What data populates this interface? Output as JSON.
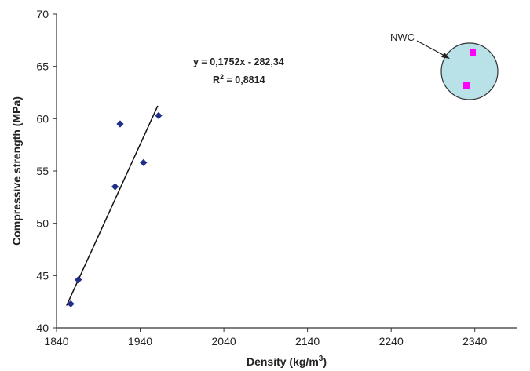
{
  "chart_data": {
    "type": "scatter",
    "xlabel": "Density (kg/m",
    "xlabel_sup": "3",
    "xlabel_end": ")",
    "ylabel": "Compressive strength (MPa)",
    "xlim": [
      1840,
      2390
    ],
    "ylim": [
      40,
      70
    ],
    "xticks": [
      1840,
      1940,
      2040,
      2140,
      2240,
      2340
    ],
    "yticks": [
      40,
      45,
      50,
      55,
      60,
      65,
      70
    ],
    "grid": false,
    "series": [
      {
        "points": [
          {
            "x": 1857,
            "y": 42.3
          },
          {
            "x": 1866,
            "y": 44.6
          },
          {
            "x": 1910,
            "y": 53.5
          },
          {
            "x": 1916,
            "y": 59.5
          },
          {
            "x": 1944,
            "y": 55.8
          },
          {
            "x": 1962,
            "y": 60.3
          }
        ],
        "color": "#1f2f8a",
        "marker": "diamond"
      }
    ],
    "trendline": {
      "x_range": [
        1852,
        1961
      ],
      "slope": 0.1752,
      "intercept": -282.34,
      "equation": "y = 0,1752x - 282,34",
      "r2_prefix": "R",
      "r2_sup": "2",
      "r2_value": " = 0,8814",
      "color": "#111111"
    },
    "inset": {
      "label": "NWC",
      "fill": "#b8e2e8",
      "marker_color": "#ff00ff",
      "marker": "square"
    }
  }
}
